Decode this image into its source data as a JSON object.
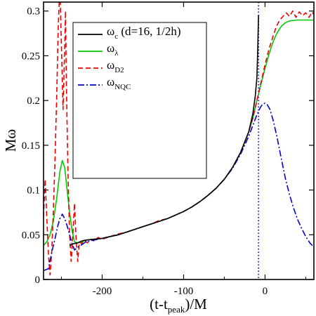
{
  "chart_data": {
    "type": "line",
    "xlabel": {
      "main": "(t-t",
      "sub": "peak",
      "tail": ")/M"
    },
    "ylabel": "Mω",
    "xlim": [
      -272,
      60
    ],
    "ylim": [
      0,
      0.31
    ],
    "xticks": [
      -200,
      -100,
      0
    ],
    "yticks": [
      0,
      0.05,
      0.1,
      0.15,
      0.2,
      0.25,
      0.3
    ],
    "xtick_labels": [
      "-200",
      "-100",
      "0"
    ],
    "ytick_labels": [
      "0",
      "0.05",
      "0.1",
      "0.15",
      "0.2",
      "0.25",
      "0.3"
    ],
    "legend_position": "top-left",
    "vline": {
      "x": -8,
      "color": "#0000cc",
      "style": "dotted"
    },
    "series": [
      {
        "name": "ωc (d=16, 1/2h)",
        "label_main": "ω",
        "label_sub": "c",
        "label_tail": " (d=16, 1/2h)",
        "color": "#000000",
        "dash": "solid",
        "points": [
          [
            -240,
            0.038
          ],
          [
            -235,
            0.04
          ],
          [
            -230,
            0.041
          ],
          [
            -225,
            0.043
          ],
          [
            -220,
            0.044
          ],
          [
            -210,
            0.045
          ],
          [
            -200,
            0.046
          ],
          [
            -190,
            0.048
          ],
          [
            -180,
            0.05
          ],
          [
            -170,
            0.053
          ],
          [
            -160,
            0.056
          ],
          [
            -150,
            0.059
          ],
          [
            -140,
            0.062
          ],
          [
            -130,
            0.065
          ],
          [
            -120,
            0.068
          ],
          [
            -110,
            0.072
          ],
          [
            -100,
            0.076
          ],
          [
            -90,
            0.081
          ],
          [
            -80,
            0.087
          ],
          [
            -70,
            0.094
          ],
          [
            -60,
            0.102
          ],
          [
            -50,
            0.112
          ],
          [
            -40,
            0.125
          ],
          [
            -30,
            0.142
          ],
          [
            -20,
            0.165
          ],
          [
            -15,
            0.185
          ],
          [
            -12,
            0.205
          ],
          [
            -10,
            0.225
          ],
          [
            -9,
            0.255
          ],
          [
            -8,
            0.295
          ]
        ]
      },
      {
        "name": "ωλ",
        "label_main": "ω",
        "label_sub": "λ",
        "label_tail": "",
        "color": "#00cc00",
        "dash": "solid",
        "points": [
          [
            -272,
            0.038
          ],
          [
            -268,
            0.042
          ],
          [
            -264,
            0.05
          ],
          [
            -260,
            0.065
          ],
          [
            -256,
            0.09
          ],
          [
            -252,
            0.12
          ],
          [
            -249,
            0.133
          ],
          [
            -246,
            0.125
          ],
          [
            -243,
            0.1
          ],
          [
            -240,
            0.075
          ],
          [
            -237,
            0.055
          ],
          [
            -234,
            0.042
          ],
          [
            -230,
            0.041
          ],
          [
            -225,
            0.042
          ],
          [
            -220,
            0.044
          ],
          [
            -210,
            0.045
          ],
          [
            -200,
            0.046
          ],
          [
            -190,
            0.048
          ],
          [
            -180,
            0.05
          ],
          [
            -170,
            0.053
          ],
          [
            -160,
            0.056
          ],
          [
            -150,
            0.059
          ],
          [
            -140,
            0.062
          ],
          [
            -130,
            0.065
          ],
          [
            -120,
            0.068
          ],
          [
            -110,
            0.072
          ],
          [
            -100,
            0.076
          ],
          [
            -90,
            0.081
          ],
          [
            -80,
            0.087
          ],
          [
            -70,
            0.094
          ],
          [
            -60,
            0.102
          ],
          [
            -50,
            0.112
          ],
          [
            -40,
            0.125
          ],
          [
            -30,
            0.142
          ],
          [
            -20,
            0.165
          ],
          [
            -15,
            0.18
          ],
          [
            -10,
            0.2
          ],
          [
            -5,
            0.218
          ],
          [
            0,
            0.236
          ],
          [
            5,
            0.252
          ],
          [
            10,
            0.266
          ],
          [
            15,
            0.276
          ],
          [
            20,
            0.283
          ],
          [
            25,
            0.287
          ],
          [
            30,
            0.289
          ],
          [
            40,
            0.29
          ],
          [
            50,
            0.29
          ],
          [
            60,
            0.29
          ]
        ]
      },
      {
        "name": "ωD2",
        "label_main": "ω",
        "label_sub": "D2",
        "label_tail": "",
        "color": "#ee0000",
        "dash": "7,4",
        "points": [
          [
            -272,
            0.07
          ],
          [
            -270,
            0.112
          ],
          [
            -268,
            0.07
          ],
          [
            -266,
            0.028
          ],
          [
            -264,
            0.005
          ],
          [
            -262,
            0.03
          ],
          [
            -260,
            0.075
          ],
          [
            -258,
            0.13
          ],
          [
            -256,
            0.2
          ],
          [
            -254,
            0.28
          ],
          [
            -252,
            0.33
          ],
          [
            -250,
            0.26
          ],
          [
            -248,
            0.19
          ],
          [
            -246,
            0.26
          ],
          [
            -245,
            0.3
          ],
          [
            -244,
            0.22
          ],
          [
            -242,
            0.12
          ],
          [
            -240,
            0.05
          ],
          [
            -238,
            0.02
          ],
          [
            -236,
            0.05
          ],
          [
            -234,
            0.085
          ],
          [
            -232,
            0.045
          ],
          [
            -230,
            0.02
          ],
          [
            -228,
            0.042
          ],
          [
            -225,
            0.04
          ],
          [
            -222,
            0.044
          ],
          [
            -218,
            0.041
          ],
          [
            -214,
            0.045
          ],
          [
            -210,
            0.043
          ],
          [
            -205,
            0.047
          ],
          [
            -200,
            0.045
          ],
          [
            -190,
            0.048
          ],
          [
            -180,
            0.051
          ],
          [
            -170,
            0.053
          ],
          [
            -160,
            0.056
          ],
          [
            -150,
            0.059
          ],
          [
            -140,
            0.062
          ],
          [
            -130,
            0.066
          ],
          [
            -120,
            0.068
          ],
          [
            -110,
            0.072
          ],
          [
            -100,
            0.076
          ],
          [
            -90,
            0.081
          ],
          [
            -80,
            0.087
          ],
          [
            -70,
            0.094
          ],
          [
            -60,
            0.102
          ],
          [
            -50,
            0.112
          ],
          [
            -40,
            0.125
          ],
          [
            -30,
            0.142
          ],
          [
            -20,
            0.165
          ],
          [
            -15,
            0.18
          ],
          [
            -10,
            0.2
          ],
          [
            -5,
            0.22
          ],
          [
            0,
            0.24
          ],
          [
            5,
            0.258
          ],
          [
            10,
            0.272
          ],
          [
            14,
            0.283
          ],
          [
            18,
            0.29
          ],
          [
            22,
            0.294
          ],
          [
            26,
            0.298
          ],
          [
            30,
            0.294
          ],
          [
            34,
            0.3
          ],
          [
            38,
            0.293
          ],
          [
            42,
            0.299
          ],
          [
            46,
            0.295
          ],
          [
            50,
            0.298
          ],
          [
            54,
            0.293
          ],
          [
            58,
            0.299
          ],
          [
            60,
            0.296
          ]
        ]
      },
      {
        "name": "ωNQC",
        "label_main": "ω",
        "label_sub": "NQC",
        "label_tail": "",
        "color": "#0000cc",
        "dash": "9,3,2,3",
        "points": [
          [
            -272,
            0.01
          ],
          [
            -266,
            0.012
          ],
          [
            -262,
            0.03
          ],
          [
            -258,
            0.045
          ],
          [
            -255,
            0.058
          ],
          [
            -252,
            0.068
          ],
          [
            -249,
            0.073
          ],
          [
            -246,
            0.068
          ],
          [
            -243,
            0.06
          ],
          [
            -240,
            0.05
          ],
          [
            -237,
            0.04
          ],
          [
            -234,
            0.033
          ],
          [
            -230,
            0.036
          ],
          [
            -225,
            0.039
          ],
          [
            -220,
            0.042
          ],
          [
            -210,
            0.044
          ],
          [
            -200,
            0.046
          ],
          [
            -190,
            0.048
          ],
          [
            -180,
            0.05
          ],
          [
            -170,
            0.053
          ],
          [
            -160,
            0.056
          ],
          [
            -150,
            0.059
          ],
          [
            -140,
            0.062
          ],
          [
            -130,
            0.065
          ],
          [
            -120,
            0.068
          ],
          [
            -110,
            0.072
          ],
          [
            -100,
            0.076
          ],
          [
            -90,
            0.081
          ],
          [
            -80,
            0.087
          ],
          [
            -70,
            0.094
          ],
          [
            -60,
            0.102
          ],
          [
            -50,
            0.112
          ],
          [
            -40,
            0.124
          ],
          [
            -30,
            0.14
          ],
          [
            -20,
            0.16
          ],
          [
            -15,
            0.172
          ],
          [
            -10,
            0.184
          ],
          [
            -6,
            0.192
          ],
          [
            -3,
            0.196
          ],
          [
            0,
            0.197
          ],
          [
            3,
            0.195
          ],
          [
            6,
            0.19
          ],
          [
            10,
            0.178
          ],
          [
            15,
            0.158
          ],
          [
            20,
            0.135
          ],
          [
            25,
            0.113
          ],
          [
            30,
            0.095
          ],
          [
            35,
            0.08
          ],
          [
            40,
            0.067
          ],
          [
            45,
            0.057
          ],
          [
            50,
            0.048
          ],
          [
            55,
            0.041
          ],
          [
            60,
            0.036
          ]
        ]
      }
    ]
  }
}
